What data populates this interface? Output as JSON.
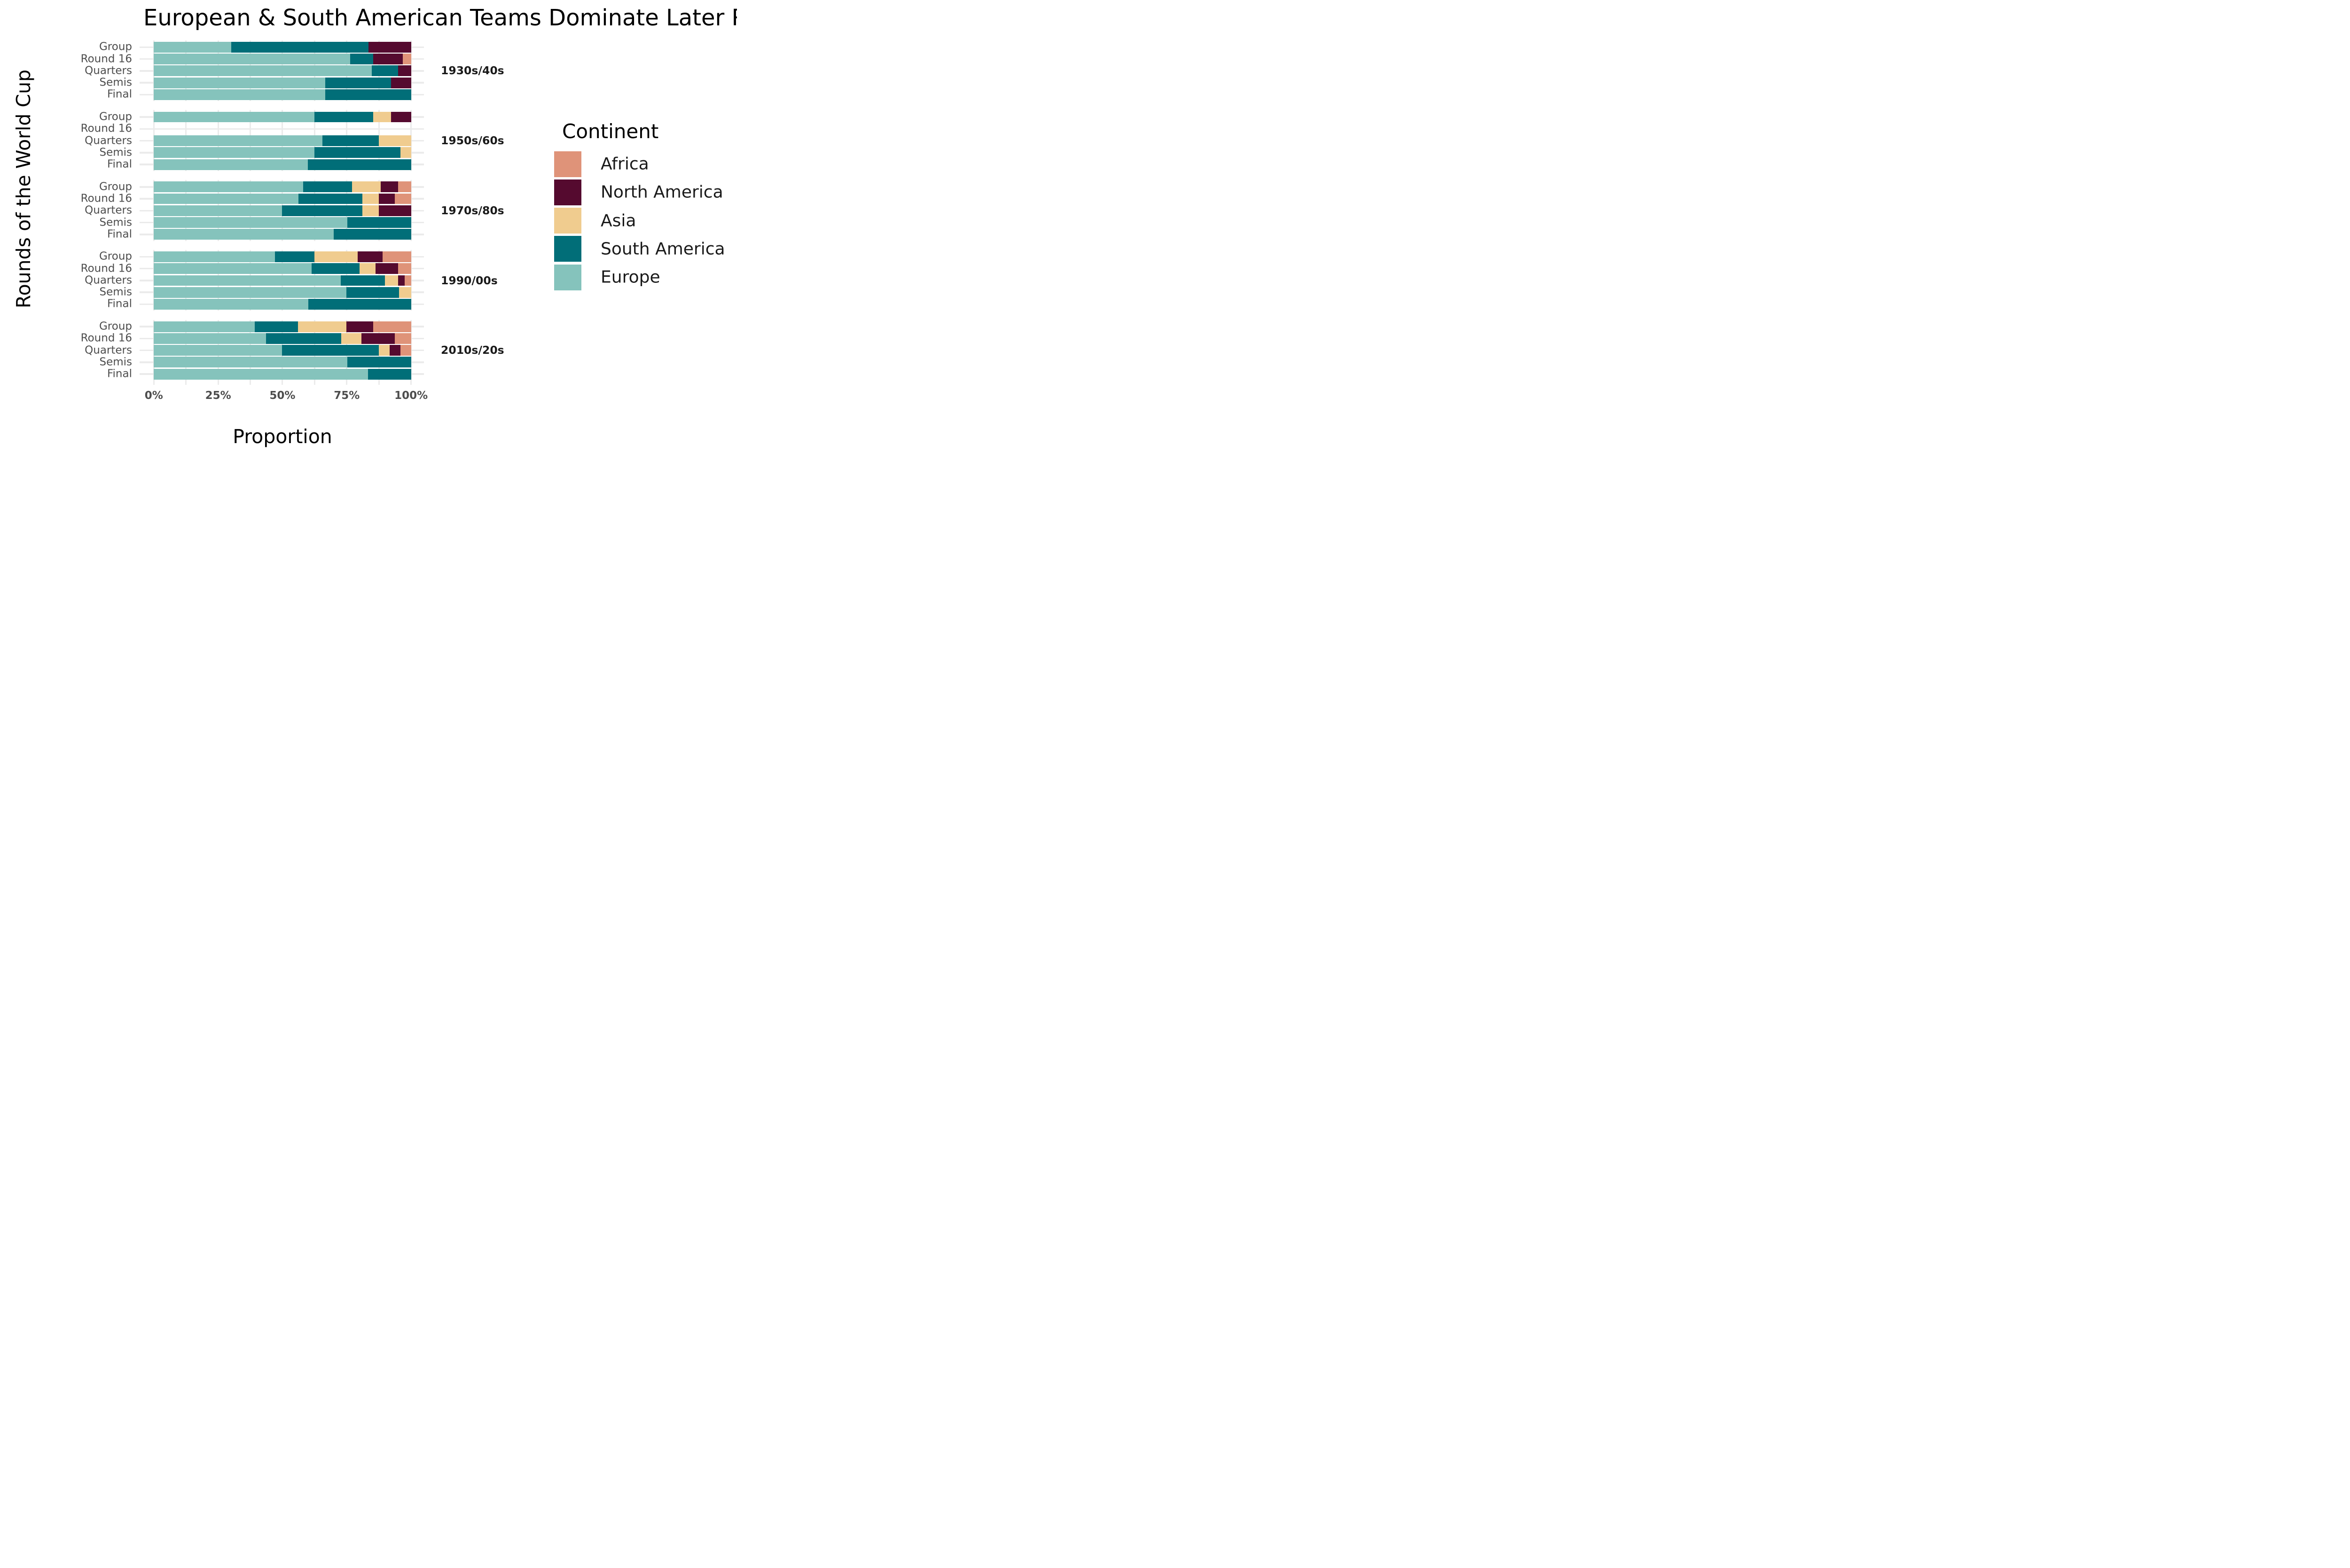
{
  "title": "European & South American Teams Dominate Later Rounds",
  "axes": {
    "x_label": "Proportion",
    "y_label": "Rounds of the World Cup",
    "x_ticks": [
      "0%",
      "25%",
      "50%",
      "75%",
      "100%"
    ],
    "x_tick_values": [
      0,
      25,
      50,
      75,
      100
    ],
    "minor_grid_step_pct": 12.5,
    "grid_color": "#ebebeb",
    "tick_text_color": "#4d4d4d"
  },
  "legend": {
    "title": "Continent",
    "items": [
      {
        "key": "africa",
        "label": "Africa",
        "color": "#DF9379"
      },
      {
        "key": "north_america",
        "label": "North America",
        "color": "#550A2F"
      },
      {
        "key": "asia",
        "label": "Asia",
        "color": "#F0CC8F"
      },
      {
        "key": "south_america",
        "label": "South America",
        "color": "#016E78"
      },
      {
        "key": "europe",
        "label": "Europe",
        "color": "#85C3BC"
      }
    ]
  },
  "chart_data": {
    "type": "bar",
    "orientation": "horizontal",
    "stacked": true,
    "units": "percent",
    "xlim": [
      0,
      100
    ],
    "title": "European & South American Teams Dominate Later Rounds",
    "xlabel": "Proportion",
    "ylabel": "Rounds of the World Cup",
    "legend_position": "right",
    "grid": "on",
    "stack_order": [
      "europe",
      "south_america",
      "asia",
      "north_america",
      "africa"
    ],
    "categories": [
      "Group",
      "Round 16",
      "Quarters",
      "Semis",
      "Final"
    ],
    "facets": [
      {
        "label": "1930s/40s",
        "rows": [
          {
            "round": "Group",
            "values": {
              "europe": 30.1,
              "south_america": 53.3,
              "asia": 0,
              "north_america": 16.6,
              "africa": 0
            }
          },
          {
            "round": "Round 16",
            "values": {
              "europe": 76.4,
              "south_america": 8.9,
              "asia": 0,
              "north_america": 11.5,
              "africa": 3.2
            }
          },
          {
            "round": "Quarters",
            "values": {
              "europe": 84.7,
              "south_america": 10.2,
              "asia": 0,
              "north_america": 5.1,
              "africa": 0
            }
          },
          {
            "round": "Semis",
            "values": {
              "europe": 66.6,
              "south_america": 25.6,
              "asia": 0,
              "north_america": 7.8,
              "africa": 0
            }
          },
          {
            "round": "Final",
            "values": {
              "europe": 66.6,
              "south_america": 33.4,
              "asia": 0,
              "north_america": 0,
              "africa": 0
            }
          }
        ]
      },
      {
        "label": "1950s/60s",
        "rows": [
          {
            "round": "Group",
            "values": {
              "europe": 62.4,
              "south_america": 22.9,
              "asia": 6.9,
              "north_america": 7.8,
              "africa": 0
            }
          },
          {
            "round": "Round 16",
            "values": {
              "europe": 0,
              "south_america": 0,
              "asia": 0,
              "north_america": 0,
              "africa": 0
            }
          },
          {
            "round": "Quarters",
            "values": {
              "europe": 65.6,
              "south_america": 21.8,
              "asia": 12.6,
              "north_america": 0,
              "africa": 0
            }
          },
          {
            "round": "Semis",
            "values": {
              "europe": 62.4,
              "south_america": 33.5,
              "asia": 4.1,
              "north_america": 0,
              "africa": 0
            }
          },
          {
            "round": "Final",
            "values": {
              "europe": 59.8,
              "south_america": 40.2,
              "asia": 0,
              "north_america": 0,
              "africa": 0
            }
          }
        ]
      },
      {
        "label": "1970s/80s",
        "rows": [
          {
            "round": "Group",
            "values": {
              "europe": 58.0,
              "south_america": 19.0,
              "asia": 11.2,
              "north_america": 6.7,
              "africa": 5.1
            }
          },
          {
            "round": "Round 16",
            "values": {
              "europe": 56.3,
              "south_america": 24.7,
              "asia": 6.4,
              "north_america": 6.3,
              "africa": 6.3
            }
          },
          {
            "round": "Quarters",
            "values": {
              "europe": 49.9,
              "south_america": 31.1,
              "asia": 6.4,
              "north_america": 12.6,
              "africa": 0
            }
          },
          {
            "round": "Semis",
            "values": {
              "europe": 75.2,
              "south_america": 24.8,
              "asia": 0,
              "north_america": 0,
              "africa": 0
            }
          },
          {
            "round": "Final",
            "values": {
              "europe": 69.9,
              "south_america": 30.1,
              "asia": 0,
              "north_america": 0,
              "africa": 0
            }
          }
        ]
      },
      {
        "label": "1990/00s",
        "rows": [
          {
            "round": "Group",
            "values": {
              "europe": 47.0,
              "south_america": 15.5,
              "asia": 16.7,
              "north_america": 9.7,
              "africa": 11.1
            }
          },
          {
            "round": "Round 16",
            "values": {
              "europe": 61.4,
              "south_america": 18.5,
              "asia": 6.3,
              "north_america": 8.8,
              "africa": 5.0
            }
          },
          {
            "round": "Quarters",
            "values": {
              "europe": 72.6,
              "south_america": 17.3,
              "asia": 5.1,
              "north_america": 2.5,
              "africa": 2.5
            }
          },
          {
            "round": "Semis",
            "values": {
              "europe": 74.9,
              "south_america": 20.4,
              "asia": 4.7,
              "north_america": 0,
              "africa": 0
            }
          },
          {
            "round": "Final",
            "values": {
              "europe": 60.0,
              "south_america": 40.0,
              "asia": 0,
              "north_america": 0,
              "africa": 0
            }
          }
        ]
      },
      {
        "label": "2010s/20s",
        "rows": [
          {
            "round": "Group",
            "values": {
              "europe": 39.3,
              "south_america": 16.7,
              "asia": 18.9,
              "north_america": 10.4,
              "africa": 14.7
            }
          },
          {
            "round": "Round 16",
            "values": {
              "europe": 43.6,
              "south_america": 29.3,
              "asia": 7.8,
              "north_america": 12.9,
              "africa": 6.4
            }
          },
          {
            "round": "Quarters",
            "values": {
              "europe": 49.9,
              "south_america": 37.5,
              "asia": 4.2,
              "north_america": 4.2,
              "africa": 4.2
            }
          },
          {
            "round": "Semis",
            "values": {
              "europe": 75.2,
              "south_america": 24.8,
              "asia": 0,
              "north_america": 0,
              "africa": 0
            }
          },
          {
            "round": "Final",
            "values": {
              "europe": 83.3,
              "south_america": 16.7,
              "asia": 0,
              "north_america": 0,
              "africa": 0
            }
          }
        ]
      }
    ]
  }
}
